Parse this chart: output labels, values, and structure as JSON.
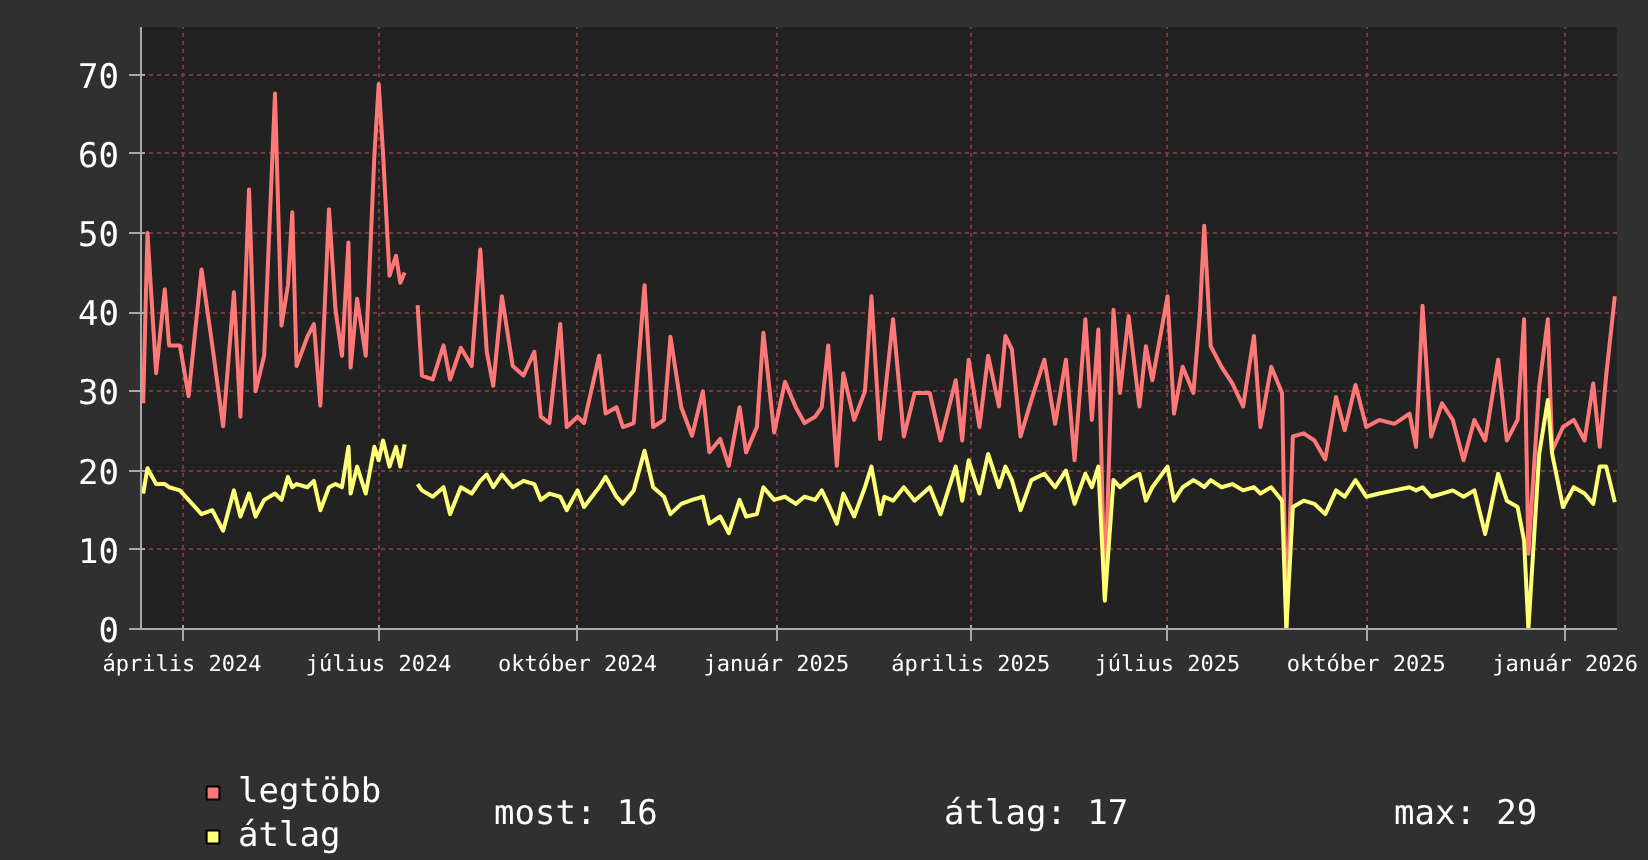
{
  "chart_data": {
    "type": "line",
    "legend": "bottom",
    "grid": true,
    "line_style": "solid",
    "xlim": [
      "2024-03-13",
      "2026-01-25"
    ],
    "ylim": [
      0,
      76
    ],
    "yticks": [
      0,
      10,
      20,
      30,
      40,
      50,
      60,
      70
    ],
    "xticks": [
      {
        "value": "2024-04-01",
        "label": "április 2024"
      },
      {
        "value": "2024-07-01",
        "label": "július 2024"
      },
      {
        "value": "2024-10-01",
        "label": "október 2024"
      },
      {
        "value": "2025-01-01",
        "label": "január 2025"
      },
      {
        "value": "2025-04-01",
        "label": "április 2025"
      },
      {
        "value": "2025-07-01",
        "label": "július 2025"
      },
      {
        "value": "2025-10-01",
        "label": "október 2025"
      },
      {
        "value": "2026-01-01",
        "label": "január 2026"
      }
    ],
    "x": [
      "2024-03-14",
      "2024-03-16",
      "2024-03-20",
      "2024-03-24",
      "2024-03-26",
      "2024-03-31",
      "2024-04-04",
      "2024-04-10",
      "2024-04-15",
      "2024-04-20",
      "2024-04-25",
      "2024-04-28",
      "2024-05-02",
      "2024-05-05",
      "2024-05-09",
      "2024-05-14",
      "2024-05-17",
      "2024-05-20",
      "2024-05-22",
      "2024-05-24",
      "2024-05-29",
      "2024-06-01",
      "2024-06-04",
      "2024-06-08",
      "2024-06-11",
      "2024-06-14",
      "2024-06-17",
      "2024-06-18",
      "2024-06-21",
      "2024-06-25",
      "2024-06-29",
      "2024-07-01",
      "2024-07-03",
      "2024-07-06",
      "2024-07-09",
      "2024-07-11",
      "2024-07-13",
      "2024-07-16",
      "2024-07-19",
      "2024-07-21",
      "2024-07-26",
      "2024-07-31",
      "2024-08-03",
      "2024-08-08",
      "2024-08-13",
      "2024-08-17",
      "2024-08-20",
      "2024-08-23",
      "2024-08-27",
      "2024-09-01",
      "2024-09-06",
      "2024-09-11",
      "2024-09-14",
      "2024-09-18",
      "2024-09-23",
      "2024-09-26",
      "2024-10-01",
      "2024-10-04",
      "2024-10-11",
      "2024-10-14",
      "2024-10-19",
      "2024-10-22",
      "2024-10-27",
      "2024-11-01",
      "2024-11-05",
      "2024-11-10",
      "2024-11-13",
      "2024-11-18",
      "2024-11-23",
      "2024-11-28",
      "2024-12-01",
      "2024-12-06",
      "2024-12-10",
      "2024-12-15",
      "2024-12-18",
      "2024-12-23",
      "2024-12-26",
      "2024-12-31",
      "2025-01-05",
      "2025-01-10",
      "2025-01-14",
      "2025-01-19",
      "2025-01-22",
      "2025-01-25",
      "2025-01-29",
      "2025-02-01",
      "2025-02-06",
      "2025-02-11",
      "2025-02-14",
      "2025-02-18",
      "2025-02-20",
      "2025-02-24",
      "2025-03-01",
      "2025-03-06",
      "2025-03-13",
      "2025-03-18",
      "2025-03-25",
      "2025-03-28",
      "2025-03-31",
      "2025-04-05",
      "2025-04-09",
      "2025-04-14",
      "2025-04-17",
      "2025-04-20",
      "2025-04-24",
      "2025-04-29",
      "2025-05-05",
      "2025-05-10",
      "2025-05-15",
      "2025-05-19",
      "2025-05-24",
      "2025-05-27",
      "2025-05-30",
      "2025-06-02",
      "2025-06-06",
      "2025-06-09",
      "2025-06-13",
      "2025-06-18",
      "2025-06-21",
      "2025-06-24",
      "2025-07-01",
      "2025-07-04",
      "2025-07-08",
      "2025-07-13",
      "2025-07-16",
      "2025-07-18",
      "2025-07-21",
      "2025-07-26",
      "2025-07-31",
      "2025-08-05",
      "2025-08-10",
      "2025-08-13",
      "2025-08-18",
      "2025-08-23",
      "2025-08-25",
      "2025-08-28",
      "2025-09-02",
      "2025-09-07",
      "2025-09-12",
      "2025-09-17",
      "2025-09-21",
      "2025-09-26",
      "2025-10-01",
      "2025-10-07",
      "2025-10-14",
      "2025-10-21",
      "2025-10-24",
      "2025-10-27",
      "2025-10-31",
      "2025-11-05",
      "2025-11-10",
      "2025-11-15",
      "2025-11-20",
      "2025-11-25",
      "2025-12-01",
      "2025-12-05",
      "2025-12-10",
      "2025-12-13",
      "2025-12-15",
      "2025-12-20",
      "2025-12-24",
      "2025-12-26",
      "2025-12-31",
      "2026-01-05",
      "2026-01-10",
      "2026-01-14",
      "2026-01-17",
      "2026-01-20",
      "2026-01-24"
    ],
    "series": [
      {
        "name": "legtöbb",
        "color": "#ff7878",
        "values": [
          28.5,
          50,
          32.3,
          42.9,
          35.8,
          35.8,
          29.4,
          45.4,
          35.8,
          25.6,
          42.5,
          26.8,
          55.5,
          30,
          34.5,
          67.6,
          38.3,
          43.4,
          52.6,
          33.2,
          36.9,
          38.5,
          28.2,
          53,
          40.3,
          34.5,
          48.8,
          33,
          41.7,
          34.5,
          59.8,
          68.8,
          60,
          44.6,
          47.1,
          43.7,
          45,
          null,
          40.9,
          32,
          31.5,
          35.8,
          31.5,
          35.5,
          33.2,
          47.9,
          35,
          30.7,
          42,
          33.2,
          32,
          35,
          26.8,
          26,
          38.5,
          25.5,
          26.8,
          26,
          34.5,
          27.2,
          28,
          25.5,
          26,
          43.4,
          25.5,
          26.4,
          36.9,
          28,
          24.4,
          30,
          22.3,
          24,
          20.6,
          28,
          22.3,
          25.5,
          37.4,
          24.8,
          31.2,
          28,
          26,
          26.8,
          28,
          35.8,
          20.6,
          32.3,
          26.4,
          30,
          42,
          24,
          29,
          39.1,
          24.3,
          29.8,
          29.8,
          23.8,
          31.4,
          23.8,
          34,
          25.5,
          34.5,
          28.1,
          37,
          35.3,
          24.3,
          28.9,
          34,
          25.9,
          34,
          21.3,
          39.1,
          26.4,
          37.8,
          3.6,
          40.3,
          29.8,
          39.5,
          28.1,
          35.7,
          31.4,
          42,
          27.2,
          33.1,
          29.8,
          39.9,
          50.9,
          35.7,
          33.1,
          31,
          28.1,
          37,
          25.5,
          33.1,
          29.8,
          0,
          24.3,
          24.7,
          23.8,
          21.4,
          29.3,
          25.1,
          30.8,
          25.5,
          26.4,
          25.9,
          27.2,
          23,
          40.8,
          24.3,
          28.5,
          26.4,
          21.3,
          26.4,
          23.8,
          34,
          23.8,
          26.4,
          39.1,
          9.5,
          30.6,
          39.1,
          22.5,
          25.5,
          26.4,
          23.8,
          31,
          23,
          32,
          42
        ]
      },
      {
        "name": "átlag",
        "color": "#ffff78",
        "values": [
          17.1,
          20.3,
          18.3,
          18.3,
          17.9,
          17.5,
          16.3,
          14.5,
          15,
          12.4,
          17.5,
          14.2,
          17.1,
          14.2,
          16.3,
          17.1,
          16.3,
          19.2,
          17.9,
          18.3,
          17.9,
          18.7,
          15,
          17.9,
          18.3,
          17.9,
          23,
          17.1,
          20.5,
          17.1,
          23,
          21.3,
          23.8,
          20.5,
          23,
          20.5,
          23.3,
          null,
          18.3,
          17.5,
          16.7,
          17.9,
          14.5,
          17.9,
          17.1,
          18.7,
          19.5,
          17.9,
          19.5,
          17.9,
          18.7,
          18.3,
          16.3,
          17.1,
          16.7,
          15,
          17.5,
          15.4,
          17.9,
          19.2,
          16.7,
          15.8,
          17.5,
          22.5,
          17.9,
          16.7,
          14.5,
          15.8,
          16.3,
          16.7,
          13.3,
          14.2,
          12.1,
          16.3,
          14.2,
          14.5,
          17.9,
          16.3,
          16.7,
          15.8,
          16.7,
          16.3,
          17.5,
          15.8,
          13.3,
          17.1,
          14.2,
          17.9,
          20.5,
          14.5,
          16.7,
          16.2,
          17.9,
          16.2,
          17.9,
          14.5,
          20.5,
          16.2,
          21.3,
          17.1,
          22.1,
          17.9,
          20.5,
          18.8,
          15,
          18.8,
          19.6,
          17.9,
          20,
          15.8,
          19.6,
          17.9,
          20.5,
          3.6,
          18.8,
          17.9,
          18.8,
          19.6,
          16.2,
          17.9,
          20.5,
          16.2,
          17.9,
          18.8,
          18.3,
          17.9,
          18.8,
          17.9,
          18.3,
          17.5,
          17.9,
          17.1,
          17.9,
          16.2,
          0,
          15.4,
          16.2,
          15.8,
          14.5,
          17.5,
          16.7,
          18.8,
          16.7,
          17.1,
          17.5,
          17.9,
          17.5,
          17.9,
          16.7,
          17.1,
          17.5,
          16.7,
          17.5,
          12,
          19.6,
          16.2,
          15.4,
          11.2,
          0,
          22.1,
          28.9,
          22.1,
          15.4,
          17.9,
          17.1,
          15.8,
          20.5,
          20.5,
          16
        ]
      }
    ],
    "annotations": [
      "most: 16",
      "átlag: 17",
      "max: 29"
    ]
  }
}
